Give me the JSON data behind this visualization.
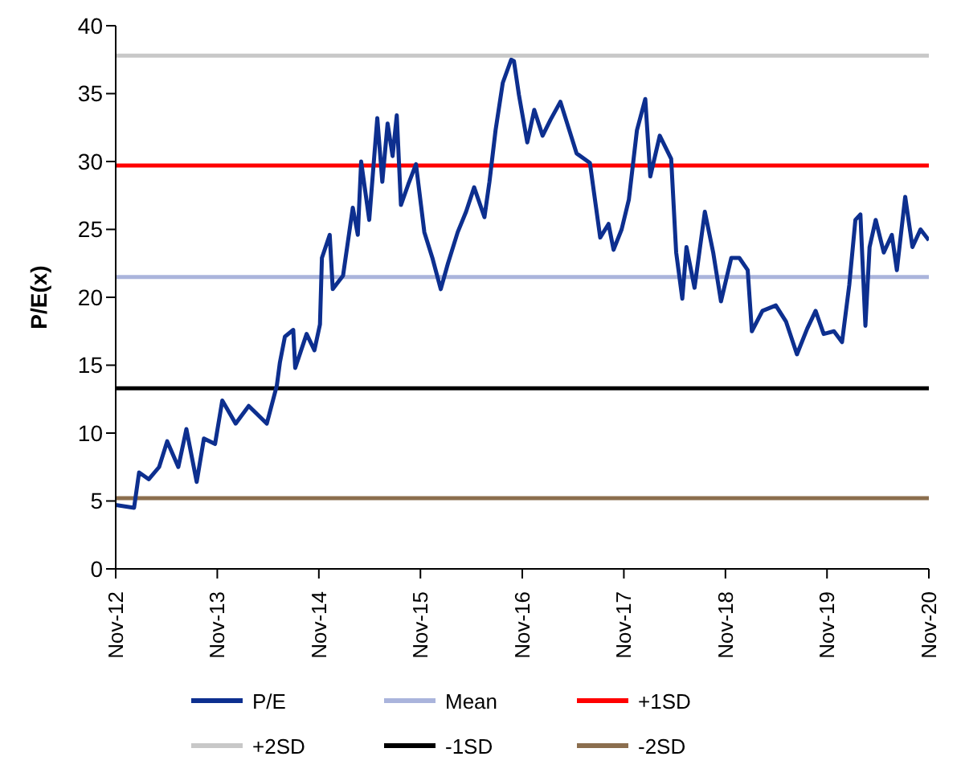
{
  "chart_data": {
    "type": "line",
    "ylabel": "P/E(x)",
    "ylim": [
      0,
      40
    ],
    "yticks": [
      0,
      5,
      10,
      15,
      20,
      25,
      30,
      35,
      40
    ],
    "xlim": [
      "2012-11-01",
      "2020-11-01"
    ],
    "xticks": [
      {
        "value": "2012-11-01",
        "label": "Nov-12"
      },
      {
        "value": "2013-11-01",
        "label": "Nov-13"
      },
      {
        "value": "2014-11-01",
        "label": "Nov-14"
      },
      {
        "value": "2015-11-01",
        "label": "Nov-15"
      },
      {
        "value": "2016-11-01",
        "label": "Nov-16"
      },
      {
        "value": "2017-11-01",
        "label": "Nov-17"
      },
      {
        "value": "2018-11-01",
        "label": "Nov-18"
      },
      {
        "value": "2019-11-01",
        "label": "Nov-19"
      },
      {
        "value": "2020-11-01",
        "label": "Nov-20"
      }
    ],
    "grid": false,
    "legend": "bottom",
    "marker": "none",
    "line_style": "solid",
    "series": [
      {
        "name": "P/E",
        "color": "#0d2f8f",
        "x": [
          "2012-11-01",
          "2013-01-06",
          "2013-01-24",
          "2013-02-28",
          "2013-04-06",
          "2013-05-05",
          "2013-06-14",
          "2013-07-13",
          "2013-08-19",
          "2013-09-14",
          "2013-10-24",
          "2013-11-19",
          "2014-01-06",
          "2014-02-22",
          "2014-04-28",
          "2014-06-03",
          "2014-06-14",
          "2014-07-02",
          "2014-08-01",
          "2014-08-08",
          "2014-09-18",
          "2014-10-16",
          "2014-11-05",
          "2014-11-12",
          "2014-12-10",
          "2014-12-21",
          "2015-01-27",
          "2015-03-03",
          "2015-03-21",
          "2015-04-02",
          "2015-05-01",
          "2015-05-30",
          "2015-06-17",
          "2015-07-06",
          "2015-07-24",
          "2015-08-08",
          "2015-08-23",
          "2015-09-18",
          "2015-10-16",
          "2015-11-15",
          "2015-12-14",
          "2016-01-13",
          "2016-02-08",
          "2016-03-14",
          "2016-04-13",
          "2016-05-12",
          "2016-06-18",
          "2016-07-06",
          "2016-07-28",
          "2016-08-23",
          "2016-09-22",
          "2016-10-02",
          "2016-10-20",
          "2016-11-19",
          "2016-12-14",
          "2017-01-13",
          "2017-02-11",
          "2017-03-18",
          "2017-04-16",
          "2017-05-15",
          "2017-07-02",
          "2017-08-08",
          "2017-09-07",
          "2017-09-25",
          "2017-10-24",
          "2017-11-19",
          "2017-12-18",
          "2018-01-17",
          "2018-02-04",
          "2018-03-10",
          "2018-04-20",
          "2018-05-08",
          "2018-05-30",
          "2018-06-14",
          "2018-07-13",
          "2018-08-19",
          "2018-09-18",
          "2018-10-16",
          "2018-11-22",
          "2018-12-21",
          "2019-01-20",
          "2019-02-04",
          "2019-03-14",
          "2019-05-01",
          "2019-06-07",
          "2019-07-16",
          "2019-08-22",
          "2019-09-21",
          "2019-10-20",
          "2019-11-26",
          "2019-12-25",
          "2020-01-20",
          "2020-02-11",
          "2020-02-29",
          "2020-03-18",
          "2020-04-02",
          "2020-04-24",
          "2020-05-23",
          "2020-06-21",
          "2020-07-09",
          "2020-08-08",
          "2020-09-03",
          "2020-10-02",
          "2020-11-01"
        ],
        "values": [
          4.7,
          4.5,
          7.1,
          6.6,
          7.5,
          9.4,
          7.5,
          10.3,
          6.4,
          9.6,
          9.2,
          12.4,
          10.7,
          12.0,
          10.7,
          13.5,
          15.2,
          17.1,
          17.6,
          14.8,
          17.3,
          16.1,
          18.0,
          22.9,
          24.6,
          20.6,
          21.6,
          26.6,
          24.6,
          30.0,
          25.7,
          33.2,
          28.5,
          32.8,
          30.4,
          33.4,
          26.8,
          28.3,
          29.8,
          24.8,
          22.9,
          20.6,
          22.5,
          24.8,
          26.3,
          28.1,
          25.9,
          28.5,
          32.3,
          35.8,
          37.5,
          37.4,
          34.9,
          31.4,
          33.8,
          31.9,
          33.1,
          34.4,
          32.5,
          30.6,
          29.9,
          24.4,
          25.4,
          23.5,
          25.0,
          27.2,
          32.3,
          34.6,
          28.9,
          31.9,
          30.2,
          23.3,
          19.9,
          23.7,
          20.7,
          26.3,
          23.3,
          19.7,
          22.9,
          22.9,
          22.0,
          17.5,
          19.0,
          19.4,
          18.2,
          15.8,
          17.7,
          19.0,
          17.3,
          17.5,
          16.7,
          20.9,
          25.7,
          26.1,
          17.9,
          23.7,
          25.7,
          23.3,
          24.6,
          22.0,
          27.4,
          23.7,
          25.0,
          24.2
        ]
      },
      {
        "name": "Mean",
        "color": "#aab4dc",
        "x": [
          "2012-11-01",
          "2020-11-01"
        ],
        "values": [
          21.5,
          21.5
        ]
      },
      {
        "name": "+1SD",
        "color": "#ff0000",
        "x": [
          "2012-11-01",
          "2020-11-01"
        ],
        "values": [
          29.7,
          29.7
        ]
      },
      {
        "name": "+2SD",
        "color": "#c8c8c8",
        "x": [
          "2012-11-01",
          "2020-11-01"
        ],
        "values": [
          37.8,
          37.8
        ]
      },
      {
        "name": "-1SD",
        "color": "#000000",
        "x": [
          "2012-11-01",
          "2020-11-01"
        ],
        "values": [
          13.3,
          13.3
        ]
      },
      {
        "name": "-2SD",
        "color": "#8b6e4e",
        "x": [
          "2012-11-01",
          "2020-11-01"
        ],
        "values": [
          5.2,
          5.2
        ]
      }
    ]
  }
}
